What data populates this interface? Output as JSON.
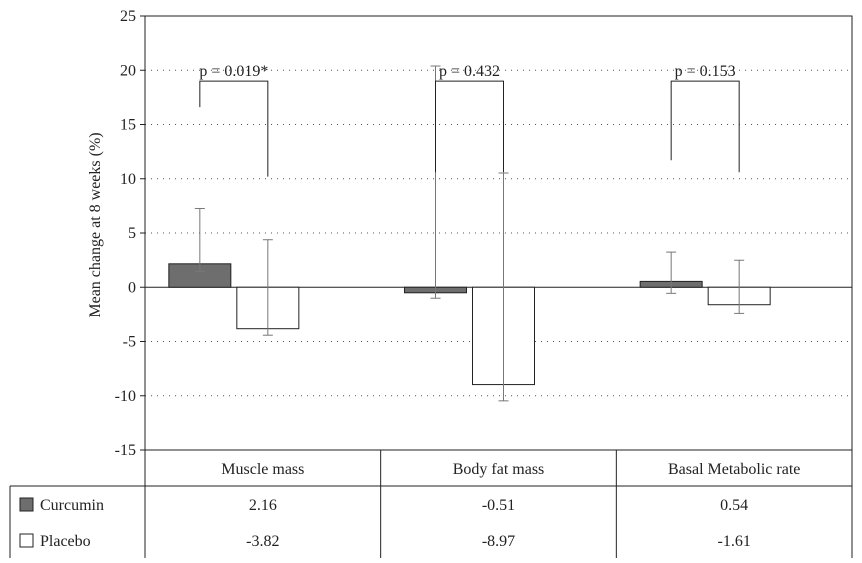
{
  "chart_data": {
    "type": "bar",
    "ylabel": "Mean change at 8 weeks (%)",
    "ylim": [
      -15,
      25
    ],
    "yticks": [
      25,
      20,
      15,
      10,
      5,
      0,
      -5,
      -10,
      -15
    ],
    "grid": true,
    "categories": [
      "Muscle mass",
      "Body fat mass",
      "Basal Metabolic rate"
    ],
    "series": [
      {
        "name": "Curcumin",
        "color": "#6e6e6e",
        "values": [
          2.16,
          -0.51,
          0.54
        ],
        "values_text": [
          "2.16",
          "-0.51",
          "0.54"
        ],
        "err_plus": [
          5.1,
          20.9,
          2.7
        ],
        "err_minus": [
          0.7,
          0.5,
          1.1
        ]
      },
      {
        "name": "Placebo",
        "color": "#ffffff",
        "values": [
          -3.82,
          -8.97,
          -1.61
        ],
        "values_text": [
          "-3.82",
          "-8.97",
          "-1.61"
        ],
        "err_plus": [
          8.2,
          19.5,
          4.1
        ],
        "err_minus": [
          0.6,
          1.5,
          0.8
        ]
      }
    ],
    "annotations": [
      {
        "category": 0,
        "label": "p = 0.019*",
        "bracket_top": 19.0,
        "left_bottom": 16.6,
        "right_bottom": 10.2
      },
      {
        "category": 1,
        "label": "p = 0.432",
        "bracket_top": 19.0,
        "left_bottom": 10.6,
        "right_bottom": 10.6
      },
      {
        "category": 2,
        "label": "p = 0.153",
        "bracket_top": 19.0,
        "left_bottom": 11.7,
        "right_bottom": 10.6
      }
    ]
  }
}
